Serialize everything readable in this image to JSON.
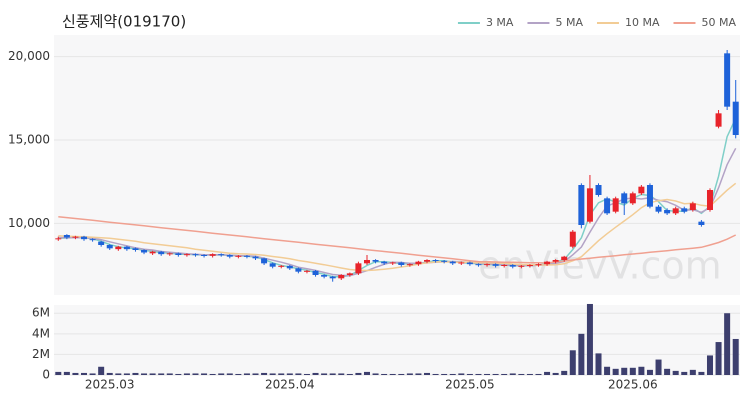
{
  "chart_data": {
    "type": "candlestick",
    "title": "신풍제약(019170)",
    "watermark": "enVievV.com",
    "up_color": "#e8232a",
    "down_color": "#1e62d9",
    "volume_color": "#3d3f6e",
    "categories": [
      null,
      null,
      null,
      null,
      null,
      null,
      "2025.03",
      null,
      null,
      null,
      null,
      null,
      null,
      null,
      null,
      null,
      null,
      null,
      null,
      null,
      null,
      null,
      null,
      null,
      null,
      null,
      null,
      "2025.04",
      null,
      null,
      null,
      null,
      null,
      null,
      null,
      null,
      null,
      null,
      null,
      null,
      null,
      null,
      null,
      null,
      null,
      null,
      null,
      null,
      "2025.05",
      null,
      null,
      null,
      null,
      null,
      null,
      null,
      null,
      null,
      null,
      null,
      null,
      null,
      null,
      null,
      null,
      null,
      null,
      "2025.06",
      null,
      null,
      null,
      null,
      null,
      null,
      null,
      null,
      null,
      null,
      null,
      null
    ],
    "open": [
      9050,
      9300,
      9150,
      9200,
      9050,
      8900,
      8700,
      8450,
      8600,
      8500,
      8400,
      8200,
      8300,
      8150,
      8200,
      8100,
      8150,
      8100,
      8050,
      8150,
      8100,
      8000,
      8050,
      8000,
      7900,
      7600,
      7400,
      7450,
      7300,
      7100,
      7150,
      6900,
      6800,
      6700,
      6900,
      7000,
      7600,
      7800,
      7700,
      7600,
      7650,
      7500,
      7550,
      7700,
      7800,
      7750,
      7700,
      7600,
      7650,
      7550,
      7500,
      7550,
      7450,
      7500,
      7400,
      7450,
      7500,
      7550,
      7700,
      7800,
      8600,
      12300,
      10100,
      12300,
      11500,
      10700,
      11800,
      11200,
      11800,
      12300,
      11000,
      10800,
      10600,
      10900,
      10800,
      10100,
      10800,
      15800,
      20200,
      17300
    ],
    "high": [
      9200,
      9350,
      9250,
      9250,
      9100,
      8950,
      8750,
      8650,
      8650,
      8550,
      8450,
      8350,
      8350,
      8250,
      8250,
      8200,
      8200,
      8150,
      8200,
      8200,
      8150,
      8100,
      8100,
      8050,
      7950,
      7650,
      7500,
      7500,
      7350,
      7200,
      7200,
      6950,
      6850,
      6950,
      7050,
      7700,
      8100,
      7850,
      7750,
      7700,
      7700,
      7600,
      7750,
      7850,
      7850,
      7800,
      7750,
      7700,
      7700,
      7600,
      7600,
      7600,
      7550,
      7550,
      7500,
      7550,
      7600,
      7750,
      7850,
      8050,
      9600,
      12400,
      12900,
      12400,
      11600,
      11600,
      11900,
      11900,
      12300,
      12400,
      11100,
      10900,
      11000,
      11000,
      11300,
      10200,
      12100,
      16800,
      20400,
      18600
    ],
    "low": [
      8950,
      9050,
      9050,
      8950,
      8900,
      8600,
      8400,
      8350,
      8350,
      8300,
      8150,
      8100,
      8050,
      8050,
      8000,
      8000,
      8000,
      7950,
      7950,
      8000,
      7900,
      7900,
      7900,
      7800,
      7500,
      7300,
      7300,
      7200,
      7000,
      7000,
      6800,
      6700,
      6500,
      6600,
      6800,
      6900,
      7500,
      7600,
      7500,
      7500,
      7400,
      7400,
      7450,
      7600,
      7650,
      7600,
      7500,
      7500,
      7450,
      7400,
      7400,
      7350,
      7350,
      7300,
      7300,
      7350,
      7400,
      7450,
      7600,
      7700,
      8500,
      9700,
      10000,
      11600,
      10500,
      10600,
      10500,
      11100,
      11700,
      10900,
      10600,
      10500,
      10500,
      10600,
      10700,
      9800,
      10700,
      15700,
      16800,
      15100
    ],
    "close": [
      9100,
      9150,
      9200,
      9050,
      9000,
      8700,
      8500,
      8600,
      8450,
      8400,
      8250,
      8300,
      8150,
      8200,
      8100,
      8150,
      8100,
      8050,
      8150,
      8100,
      8000,
      8050,
      8000,
      7900,
      7600,
      7400,
      7450,
      7300,
      7100,
      7150,
      6900,
      6800,
      6700,
      6900,
      7000,
      7600,
      7800,
      7700,
      7600,
      7650,
      7500,
      7550,
      7700,
      7800,
      7750,
      7700,
      7600,
      7650,
      7550,
      7500,
      7550,
      7450,
      7500,
      7400,
      7450,
      7500,
      7550,
      7700,
      7800,
      8000,
      9500,
      9900,
      12100,
      11700,
      10600,
      11500,
      11200,
      11800,
      12200,
      11000,
      10700,
      10600,
      10900,
      10700,
      11200,
      9900,
      12000,
      16600,
      17000,
      15300
    ],
    "volume": [
      0.3,
      0.3,
      0.2,
      0.2,
      0.15,
      0.8,
      0.2,
      0.15,
      0.15,
      0.2,
      0.15,
      0.15,
      0.15,
      0.15,
      0.1,
      0.15,
      0.15,
      0.15,
      0.1,
      0.15,
      0.15,
      0.1,
      0.15,
      0.15,
      0.2,
      0.15,
      0.15,
      0.15,
      0.15,
      0.1,
      0.2,
      0.15,
      0.15,
      0.15,
      0.1,
      0.2,
      0.3,
      0.15,
      0.1,
      0.1,
      0.1,
      0.15,
      0.15,
      0.2,
      0.1,
      0.1,
      0.1,
      0.15,
      0.1,
      0.1,
      0.1,
      0.1,
      0.1,
      0.15,
      0.1,
      0.1,
      0.1,
      0.3,
      0.2,
      0.4,
      2.4,
      4.0,
      6.9,
      2.1,
      0.8,
      0.6,
      0.7,
      0.7,
      0.8,
      0.5,
      1.5,
      0.6,
      0.4,
      0.3,
      0.5,
      0.3,
      1.9,
      3.2,
      6.0,
      3.5
    ],
    "series": [
      {
        "name": "3 MA",
        "color": "#7fcfc8",
        "values": [
          9100,
          9120,
          9150,
          9130,
          9080,
          8920,
          8730,
          8600,
          8520,
          8480,
          8370,
          8320,
          8230,
          8220,
          8150,
          8150,
          8120,
          8100,
          8100,
          8100,
          8080,
          8050,
          8020,
          7980,
          7830,
          7630,
          7480,
          7380,
          7280,
          7180,
          7050,
          6950,
          6800,
          6800,
          6870,
          7170,
          7470,
          7700,
          7700,
          7650,
          7580,
          7570,
          7580,
          7680,
          7750,
          7750,
          7680,
          7650,
          7600,
          7570,
          7530,
          7500,
          7500,
          7450,
          7450,
          7450,
          7500,
          7580,
          7680,
          7830,
          8430,
          9130,
          10500,
          11230,
          11470,
          11270,
          11100,
          11500,
          11730,
          11670,
          11300,
          10770,
          10730,
          10730,
          10930,
          10600,
          11030,
          12830,
          15200,
          16300
        ]
      },
      {
        "name": "5 MA",
        "color": "#b3a3c6",
        "values": [
          9150,
          9140,
          9140,
          9130,
          9100,
          9020,
          8890,
          8770,
          8650,
          8530,
          8440,
          8400,
          8310,
          8260,
          8220,
          8180,
          8140,
          8120,
          8110,
          8110,
          8080,
          8060,
          8060,
          8020,
          7910,
          7790,
          7670,
          7530,
          7370,
          7280,
          7180,
          7050,
          6930,
          6890,
          6860,
          7000,
          7160,
          7360,
          7540,
          7670,
          7650,
          7600,
          7600,
          7640,
          7660,
          7700,
          7710,
          7700,
          7650,
          7600,
          7560,
          7540,
          7510,
          7480,
          7470,
          7460,
          7480,
          7520,
          7600,
          7710,
          8110,
          8580,
          9460,
          10320,
          11040,
          11240,
          11460,
          11520,
          11460,
          11540,
          11380,
          11300,
          11080,
          10780,
          10820,
          10660,
          10940,
          12140,
          13520,
          14500
        ]
      },
      {
        "name": "10 MA",
        "color": "#f2cc95",
        "values": [
          9250,
          9230,
          9210,
          9190,
          9170,
          9140,
          9100,
          9050,
          8990,
          8920,
          8840,
          8780,
          8720,
          8660,
          8600,
          8530,
          8450,
          8380,
          8330,
          8270,
          8210,
          8180,
          8160,
          8130,
          8080,
          8010,
          7950,
          7870,
          7770,
          7690,
          7600,
          7520,
          7420,
          7320,
          7230,
          7190,
          7170,
          7200,
          7250,
          7300,
          7380,
          7450,
          7550,
          7640,
          7680,
          7690,
          7670,
          7670,
          7660,
          7640,
          7630,
          7620,
          7600,
          7560,
          7530,
          7510,
          7500,
          7500,
          7520,
          7570,
          7750,
          8000,
          8470,
          8960,
          9380,
          9770,
          10140,
          10520,
          10940,
          11240,
          11360,
          11430,
          11340,
          11180,
          11200,
          11080,
          11030,
          11510,
          11990,
          12400
        ]
      },
      {
        "name": "50 MA",
        "color": "#f0a090",
        "values": [
          10400,
          10345,
          10290,
          10235,
          10180,
          10125,
          10070,
          10015,
          9960,
          9905,
          9850,
          9795,
          9740,
          9685,
          9630,
          9575,
          9520,
          9465,
          9410,
          9355,
          9300,
          9245,
          9190,
          9135,
          9080,
          9025,
          8970,
          8915,
          8860,
          8805,
          8750,
          8695,
          8640,
          8585,
          8530,
          8475,
          8420,
          8365,
          8310,
          8255,
          8200,
          8145,
          8090,
          8035,
          7980,
          7925,
          7870,
          7815,
          7760,
          7705,
          7690,
          7680,
          7670,
          7660,
          7650,
          7640,
          7630,
          7620,
          7680,
          7740,
          7800,
          7860,
          7910,
          7960,
          8010,
          8060,
          8110,
          8160,
          8210,
          8260,
          8310,
          8360,
          8410,
          8460,
          8510,
          8560,
          8700,
          8850,
          9050,
          9300
        ]
      }
    ],
    "ylim": [
      5700,
      21300
    ],
    "yticks": [
      {
        "value": 10000,
        "label": "10,000"
      },
      {
        "value": 15000,
        "label": "15,000"
      },
      {
        "value": 20000,
        "label": "20,000"
      }
    ],
    "volume_ylim": [
      0,
      6.8
    ],
    "volume_yticks": [
      0,
      {
        "value": 2,
        "label": "2M"
      },
      {
        "value": 4,
        "label": "4M"
      },
      {
        "value": 6,
        "label": "6M"
      }
    ],
    "grid": true,
    "legend": "top-right"
  }
}
